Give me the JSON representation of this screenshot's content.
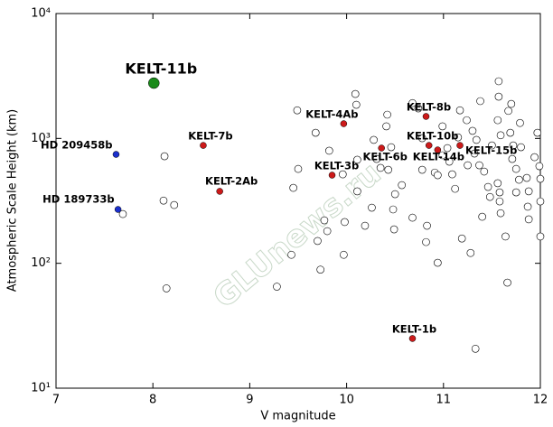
{
  "chart_data": {
    "type": "scatter",
    "xlabel": "V magnitude",
    "ylabel": "Atmospheric Scale Height (km)",
    "watermark": "GLUnews.ru",
    "xlim": [
      7,
      12
    ],
    "xticks": [
      7,
      8,
      9,
      10,
      11,
      12
    ],
    "ylim": [
      10,
      10000
    ],
    "yscale": "log",
    "yticks": [
      {
        "value": 10,
        "label": "10¹"
      },
      {
        "value": 100,
        "label": "10²"
      },
      {
        "value": 1000,
        "label": "10³"
      },
      {
        "value": 10000,
        "label": "10⁴"
      }
    ],
    "open_color": "#ffffff",
    "x": [
      7.69,
      8.12,
      8.11,
      8.22,
      8.14,
      9.28,
      9.49,
      9.45,
      9.5,
      9.43,
      9.7,
      9.73,
      9.77,
      9.8,
      9.68,
      9.82,
      9.97,
      9.98,
      9.96,
      10.1,
      10.09,
      10.11,
      10.19,
      10.11,
      10.28,
      10.42,
      10.41,
      10.31,
      10.35,
      10.43,
      10.46,
      10.26,
      10.48,
      10.5,
      10.57,
      10.49,
      10.68,
      10.68,
      10.74,
      10.78,
      10.78,
      10.82,
      10.83,
      10.91,
      10.94,
      10.94,
      10.99,
      10.99,
      11.04,
      11.06,
      11.09,
      11.12,
      11.15,
      11.17,
      11.24,
      11.19,
      11.28,
      11.3,
      11.32,
      11.34,
      11.38,
      11.37,
      11.42,
      11.46,
      11.48,
      11.4,
      11.33,
      11.57,
      11.57,
      11.56,
      11.59,
      11.56,
      11.58,
      11.58,
      11.59,
      11.64,
      11.66,
      11.7,
      11.67,
      11.69,
      11.72,
      11.71,
      11.75,
      11.78,
      11.75,
      11.79,
      11.8,
      11.86,
      11.87,
      11.88,
      11.88,
      11.94,
      11.97,
      11.99,
      12.0,
      12.0,
      12.0,
      11.5,
      11.25
    ],
    "values": [
      248,
      720,
      318,
      293,
      63,
      65,
      1680,
      402,
      570,
      117,
      151,
      89,
      221,
      181,
      1110,
      797,
      117,
      214,
      516,
      1860,
      2270,
      675,
      200,
      377,
      973,
      1550,
      1250,
      685,
      581,
      561,
      851,
      279,
      270,
      358,
      423,
      187,
      232,
      1920,
      1740,
      1005,
      561,
      148,
      200,
      533,
      508,
      101,
      1250,
      733,
      837,
      652,
      516,
      395,
      1020,
      1680,
      1400,
      158,
      121,
      1150,
      757,
      973,
      1990,
      610,
      543,
      409,
      340,
      236,
      20.7,
      2870,
      2160,
      1400,
      1060,
      438,
      370,
      313,
      252,
      164,
      70,
      1890,
      1660,
      1110,
      879,
      685,
      570,
      467,
      370,
      1330,
      851,
      483,
      284,
      225,
      377,
      708,
      1110,
      600,
      475,
      313,
      164,
      879,
      610
    ],
    "labeled_points": [
      {
        "label": "KELT-11b",
        "x": 8.01,
        "y": 2773,
        "color": "#1a8a1a",
        "size": 12
      },
      {
        "label": "HD 209458b",
        "x": 7.62,
        "y": 745,
        "color": "#1a2fcc",
        "size": 7
      },
      {
        "label": "HD 189733b",
        "x": 7.64,
        "y": 270,
        "color": "#1a2fcc",
        "size": 7
      },
      {
        "label": "KELT-7b",
        "x": 8.52,
        "y": 879,
        "color": "#cc1a1a",
        "size": 7
      },
      {
        "label": "KELT-2Ab",
        "x": 8.69,
        "y": 377,
        "color": "#cc1a1a",
        "size": 7
      },
      {
        "label": "KELT-4Ab",
        "x": 9.97,
        "y": 1312,
        "color": "#cc1a1a",
        "size": 7
      },
      {
        "label": "KELT-3b",
        "x": 9.85,
        "y": 508,
        "color": "#cc1a1a",
        "size": 7
      },
      {
        "label": "KELT-6b",
        "x": 10.36,
        "y": 837,
        "color": "#cc1a1a",
        "size": 7
      },
      {
        "label": "KELT-8b",
        "x": 10.82,
        "y": 1500,
        "color": "#cc1a1a",
        "size": 7
      },
      {
        "label": "KELT-10b",
        "x": 10.85,
        "y": 879,
        "color": "#cc1a1a",
        "size": 7
      },
      {
        "label": "KELT-14b",
        "x": 10.94,
        "y": 809,
        "color": "#cc1a1a",
        "size": 7
      },
      {
        "label": "KELT-15b",
        "x": 11.17,
        "y": 879,
        "color": "#cc1a1a",
        "size": 7
      },
      {
        "label": "KELT-1b",
        "x": 10.68,
        "y": 25,
        "color": "#cc1a1a",
        "size": 7
      }
    ]
  }
}
